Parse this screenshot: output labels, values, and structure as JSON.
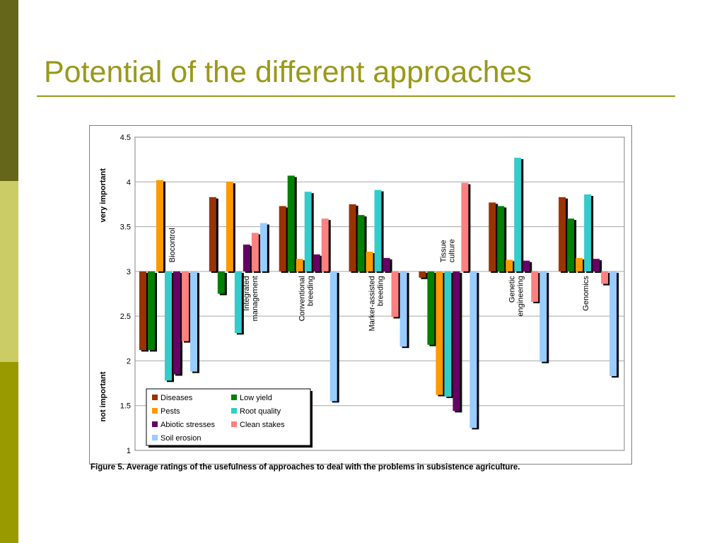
{
  "slide": {
    "title": "Potential of the different approaches",
    "caption": "Figure 5. Average ratings of the usefulness of approaches to deal with the problems in subsistence agriculture.",
    "accent_color": "#99991a"
  },
  "chart_data": {
    "type": "bar",
    "baseline": 3,
    "ylim": [
      1,
      4.5
    ],
    "yticks": [
      "1",
      "1.5",
      "2",
      "2.5",
      "3",
      "3.5",
      "4",
      "4.5"
    ],
    "ylabel_top": "very important",
    "ylabel_bottom": "not important",
    "grid": true,
    "legend_position": "bottom-left",
    "categories": [
      "Biocontrol",
      "Integrated management",
      "Conventional breeding",
      "Marker-assisted breeding",
      "Tissue culture",
      "Genetic engineering",
      "Genomics"
    ],
    "series": [
      {
        "name": "Diseases",
        "color": "#993300",
        "values": [
          2.12,
          3.83,
          3.73,
          3.75,
          2.93,
          3.77,
          3.83
        ]
      },
      {
        "name": "Low yield",
        "color": "#008000",
        "values": [
          2.12,
          2.75,
          4.07,
          3.63,
          2.18,
          3.73,
          3.59
        ]
      },
      {
        "name": "Pests",
        "color": "#ff9900",
        "values": [
          4.02,
          4.0,
          3.14,
          3.22,
          1.62,
          3.13,
          3.15
        ]
      },
      {
        "name": "Root quality",
        "color": "#33cccc",
        "values": [
          1.78,
          2.31,
          3.89,
          3.91,
          1.6,
          4.27,
          3.86
        ]
      },
      {
        "name": "Abiotic stresses",
        "color": "#660066",
        "values": [
          1.85,
          3.3,
          3.19,
          3.15,
          1.44,
          3.12,
          3.14
        ]
      },
      {
        "name": "Clean stakes",
        "color": "#ff8080",
        "values": [
          2.22,
          3.43,
          3.59,
          2.49,
          3.99,
          2.66,
          2.86
        ]
      },
      {
        "name": "Soil erosion",
        "color": "#99ccff",
        "values": [
          1.88,
          3.54,
          1.55,
          2.16,
          1.25,
          1.99,
          1.83
        ]
      }
    ],
    "legend_order": [
      0,
      1,
      2,
      3,
      4,
      5,
      6
    ]
  }
}
